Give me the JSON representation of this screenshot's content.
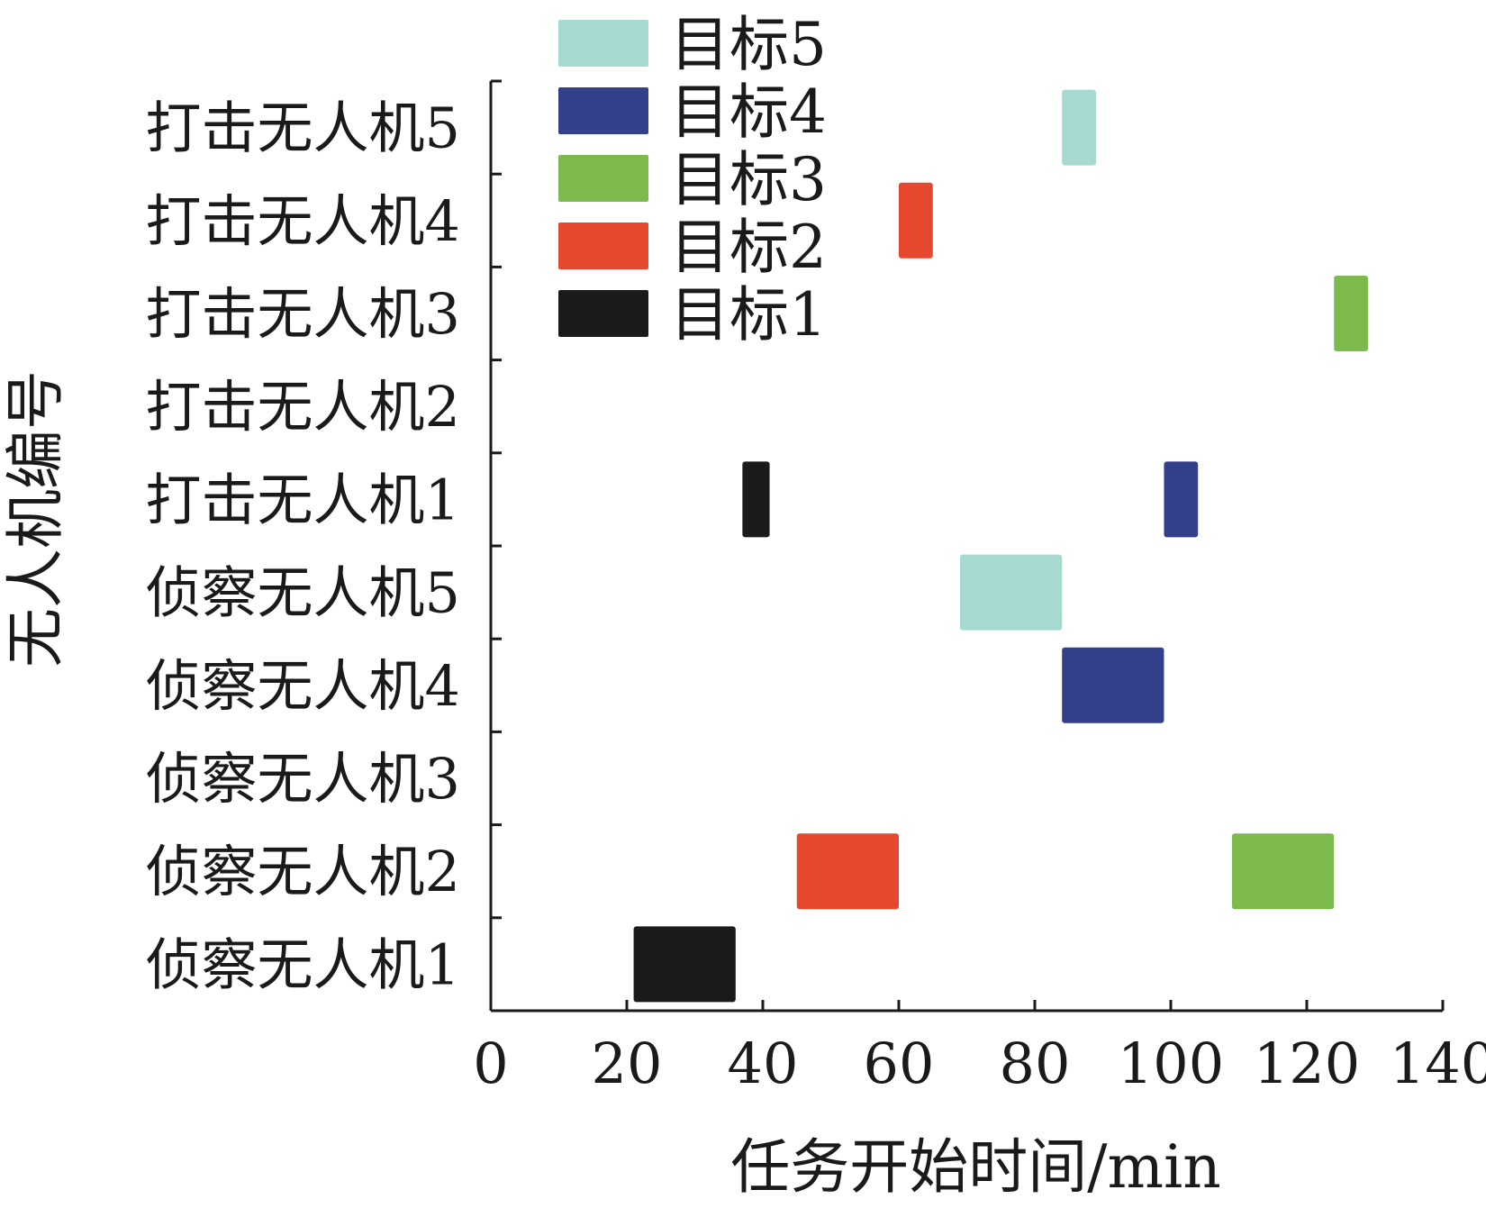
{
  "chart_data": {
    "type": "gantt",
    "title": "",
    "xlabel": "任务开始时间/min",
    "ylabel": "无人机编号",
    "xlim": [
      0,
      140
    ],
    "xticks": [
      0,
      20,
      40,
      60,
      80,
      100,
      120,
      140
    ],
    "grid": false,
    "legend_position": "top",
    "categories": [
      "侦察无人机1",
      "侦察无人机2",
      "侦察无人机3",
      "侦察无人机4",
      "侦察无人机5",
      "打击无人机1",
      "打击无人机2",
      "打击无人机3",
      "打击无人机4",
      "打击无人机5"
    ],
    "series": [
      {
        "name": "目标5",
        "color": "#a6d9d0",
        "tasks": [
          {
            "category": "侦察无人机5",
            "start": 69,
            "end": 84
          },
          {
            "category": "打击无人机5",
            "start": 84,
            "end": 89
          }
        ]
      },
      {
        "name": "目标4",
        "color": "#343f8c",
        "tasks": [
          {
            "category": "侦察无人机4",
            "start": 84,
            "end": 99
          },
          {
            "category": "打击无人机1",
            "start": 99,
            "end": 104
          }
        ]
      },
      {
        "name": "目标3",
        "color": "#7cba4e",
        "tasks": [
          {
            "category": "侦察无人机2",
            "start": 109,
            "end": 124
          },
          {
            "category": "打击无人机3",
            "start": 124,
            "end": 129
          }
        ]
      },
      {
        "name": "目标2",
        "color": "#e5482d",
        "tasks": [
          {
            "category": "侦察无人机2",
            "start": 45,
            "end": 60
          },
          {
            "category": "打击无人机4",
            "start": 60,
            "end": 65
          }
        ]
      },
      {
        "name": "目标1",
        "color": "#1a1a1a",
        "tasks": [
          {
            "category": "侦察无人机1",
            "start": 21,
            "end": 36
          },
          {
            "category": "打击无人机1",
            "start": 37,
            "end": 41
          }
        ]
      }
    ]
  }
}
